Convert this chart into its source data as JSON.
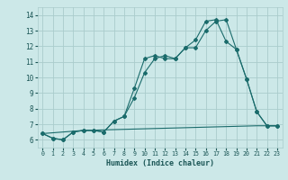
{
  "background_color": "#cce8e8",
  "grid_color": "#aacccc",
  "line_color": "#1a6b6b",
  "xlabel": "Humidex (Indice chaleur)",
  "xlim": [
    -0.5,
    23.5
  ],
  "ylim": [
    5.5,
    14.5
  ],
  "yticks": [
    6,
    7,
    8,
    9,
    10,
    11,
    12,
    13,
    14
  ],
  "xticks": [
    0,
    1,
    2,
    3,
    4,
    5,
    6,
    7,
    8,
    9,
    10,
    11,
    12,
    13,
    14,
    15,
    16,
    17,
    18,
    19,
    20,
    21,
    22,
    23
  ],
  "line1_x": [
    0,
    1,
    2,
    3,
    4,
    5,
    6,
    7,
    8,
    9,
    10,
    11,
    12,
    13,
    14,
    15,
    16,
    17,
    18,
    19,
    20,
    21,
    22,
    23
  ],
  "line1_y": [
    6.4,
    6.1,
    6.0,
    6.5,
    6.6,
    6.6,
    6.5,
    7.2,
    7.5,
    8.7,
    10.3,
    11.2,
    11.4,
    11.2,
    11.9,
    11.9,
    13.0,
    13.6,
    13.7,
    11.8,
    9.9,
    7.8,
    6.9,
    6.9
  ],
  "line2_x": [
    0,
    1,
    2,
    3,
    4,
    5,
    6,
    7,
    8,
    9,
    10,
    11,
    12,
    13,
    14,
    15,
    16,
    17,
    18,
    19,
    20,
    21,
    22,
    23
  ],
  "line2_y": [
    6.4,
    6.1,
    6.0,
    6.5,
    6.6,
    6.6,
    6.5,
    7.2,
    7.5,
    9.3,
    11.2,
    11.4,
    11.2,
    11.2,
    11.9,
    12.4,
    13.6,
    13.7,
    12.3,
    11.8,
    9.9,
    7.8,
    6.9,
    6.9
  ],
  "line3_x": [
    0,
    4,
    21,
    23
  ],
  "line3_y": [
    6.4,
    6.6,
    6.9,
    6.9
  ]
}
